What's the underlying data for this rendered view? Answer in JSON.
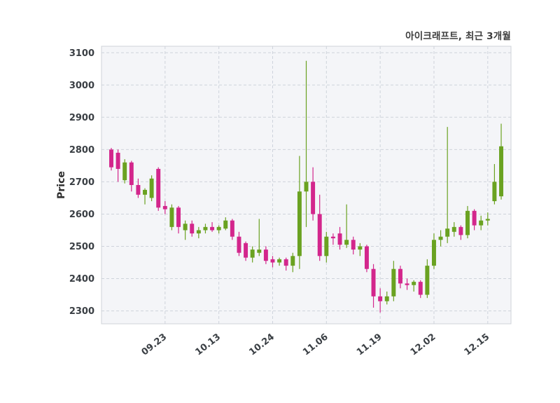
{
  "chart_data": {
    "type": "candlestick",
    "title": "아이크래프트, 최근 3개월",
    "ylabel": "Price",
    "ylim": [
      2260,
      3120
    ],
    "yticks": [
      2300,
      2400,
      2500,
      2600,
      2700,
      2800,
      2900,
      3000,
      3100
    ],
    "xtick_labels": [
      "09.23",
      "10.13",
      "10.24",
      "11.06",
      "11.19",
      "12.02",
      "12.15"
    ],
    "xtick_indices": [
      8,
      16,
      24,
      32,
      40,
      48,
      56
    ],
    "up_color": "#6aa221",
    "down_color": "#d3268c",
    "grid_on": true,
    "legend_position": "none",
    "candles": [
      [
        2800,
        2805,
        2735,
        2745
      ],
      [
        2790,
        2800,
        2700,
        2740
      ],
      [
        2705,
        2770,
        2695,
        2760
      ],
      [
        2760,
        2765,
        2670,
        2690
      ],
      [
        2690,
        2710,
        2650,
        2660
      ],
      [
        2660,
        2680,
        2630,
        2675
      ],
      [
        2650,
        2720,
        2640,
        2710
      ],
      [
        2740,
        2745,
        2610,
        2620
      ],
      [
        2625,
        2640,
        2600,
        2615
      ],
      [
        2560,
        2630,
        2550,
        2620
      ],
      [
        2620,
        2625,
        2540,
        2560
      ],
      [
        2550,
        2580,
        2520,
        2570
      ],
      [
        2570,
        2580,
        2530,
        2540
      ],
      [
        2540,
        2560,
        2525,
        2550
      ],
      [
        2550,
        2570,
        2540,
        2560
      ],
      [
        2560,
        2575,
        2545,
        2550
      ],
      [
        2550,
        2565,
        2540,
        2560
      ],
      [
        2555,
        2590,
        2550,
        2580
      ],
      [
        2580,
        2585,
        2520,
        2530
      ],
      [
        2530,
        2545,
        2470,
        2480
      ],
      [
        2510,
        2515,
        2455,
        2465
      ],
      [
        2465,
        2500,
        2450,
        2490
      ],
      [
        2480,
        2585,
        2470,
        2490
      ],
      [
        2490,
        2500,
        2445,
        2455
      ],
      [
        2460,
        2470,
        2435,
        2450
      ],
      [
        2450,
        2465,
        2440,
        2460
      ],
      [
        2460,
        2465,
        2425,
        2440
      ],
      [
        2440,
        2480,
        2420,
        2470
      ],
      [
        2470,
        2780,
        2430,
        2670
      ],
      [
        2670,
        3075,
        2560,
        2700
      ],
      [
        2700,
        2745,
        2580,
        2600
      ],
      [
        2600,
        2660,
        2455,
        2470
      ],
      [
        2470,
        2545,
        2450,
        2530
      ],
      [
        2530,
        2540,
        2505,
        2525
      ],
      [
        2540,
        2560,
        2490,
        2505
      ],
      [
        2505,
        2630,
        2495,
        2520
      ],
      [
        2520,
        2530,
        2475,
        2490
      ],
      [
        2490,
        2510,
        2470,
        2500
      ],
      [
        2500,
        2505,
        2420,
        2430
      ],
      [
        2430,
        2445,
        2310,
        2345
      ],
      [
        2345,
        2370,
        2295,
        2330
      ],
      [
        2330,
        2360,
        2320,
        2345
      ],
      [
        2345,
        2455,
        2330,
        2430
      ],
      [
        2430,
        2440,
        2370,
        2385
      ],
      [
        2385,
        2400,
        2365,
        2380
      ],
      [
        2380,
        2395,
        2360,
        2390
      ],
      [
        2390,
        2395,
        2340,
        2350
      ],
      [
        2350,
        2460,
        2340,
        2440
      ],
      [
        2440,
        2540,
        2430,
        2520
      ],
      [
        2520,
        2550,
        2500,
        2530
      ],
      [
        2530,
        2870,
        2510,
        2555
      ],
      [
        2545,
        2575,
        2530,
        2560
      ],
      [
        2560,
        2565,
        2520,
        2535
      ],
      [
        2535,
        2625,
        2525,
        2610
      ],
      [
        2610,
        2615,
        2550,
        2565
      ],
      [
        2565,
        2595,
        2550,
        2580
      ],
      [
        2580,
        2605,
        2565,
        2585
      ],
      [
        2640,
        2755,
        2630,
        2700
      ],
      [
        2655,
        2880,
        2645,
        2810
      ]
    ]
  }
}
